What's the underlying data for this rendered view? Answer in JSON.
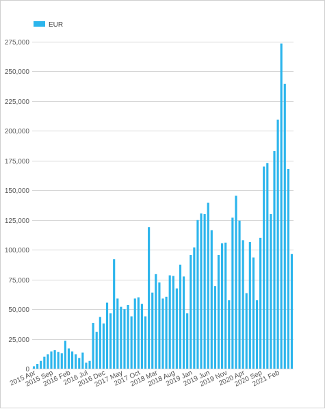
{
  "chart_data": {
    "type": "bar",
    "color": "#2cb5ec",
    "grid": true,
    "legend_position": "top-left",
    "series": [
      {
        "name": "EUR",
        "values": [
          2000,
          4000,
          6500,
          10000,
          12000,
          14500,
          15500,
          14000,
          13000,
          23500,
          17000,
          14500,
          12000,
          9000,
          13500,
          5000,
          6500,
          38500,
          31000,
          43500,
          38000,
          55500,
          46500,
          92000,
          59000,
          52000,
          50000,
          53500,
          44000,
          59000,
          60000,
          54500,
          44000,
          119000,
          64000,
          79500,
          72500,
          59000,
          60500,
          78500,
          78000,
          67500,
          87500,
          77500,
          46500,
          95500,
          102000,
          125000,
          130500,
          130000,
          139500,
          116500,
          69500,
          95500,
          105500,
          106000,
          57500,
          127000,
          145500,
          124500,
          108000,
          63500,
          106500,
          93500,
          57500,
          110000,
          170000,
          173000,
          130000,
          183000,
          209500,
          273500,
          239500,
          168000,
          96500
        ]
      }
    ],
    "x_tick_labels": [
      "2015 Apr",
      "2015 Sep",
      "2016 Feb",
      "2016 Jul",
      "2016 Dec",
      "2017 May",
      "2017 Oct",
      "2018 Mar",
      "2018 Aug",
      "2019 Jan",
      "2019 Jun",
      "2019 Nov",
      "2020 Apr",
      "2020 Sep",
      "2021 Feb"
    ],
    "x_tick_every": 5,
    "y_ticks": [
      "0",
      "25,000",
      "50,000",
      "75,000",
      "100,000",
      "125,000",
      "150,000",
      "175,000",
      "200,000",
      "225,000",
      "250,000",
      "275,000"
    ],
    "ylim": [
      0,
      275000
    ],
    "y_step": 25000
  }
}
